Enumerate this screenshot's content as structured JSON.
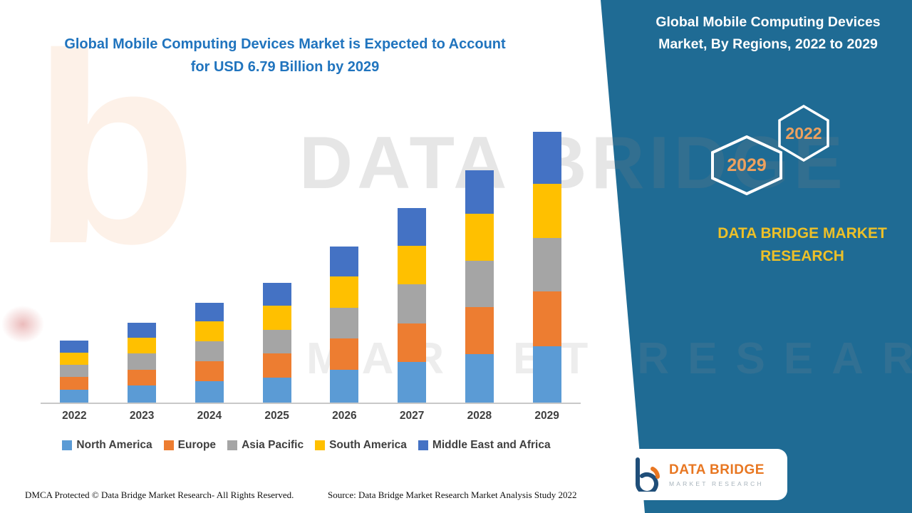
{
  "left": {
    "title_line1": "Global Mobile Computing Devices Market is Expected to Account",
    "title_line2": "for USD 6.79 Billion by 2029",
    "footer_dmca": "DMCA Protected © Data Bridge Market Research- All Rights Reserved.",
    "footer_source": "Source: Data Bridge Market Research Market Analysis Study 2022"
  },
  "right_panel": {
    "title_line1": "Global Mobile Computing Devices",
    "title_line2": "Market, By Regions, 2022 to 2029",
    "hexagon_left": "2029",
    "hexagon_right": "2022",
    "brand_line1": "DATA BRIDGE MARKET",
    "brand_line2": "RESEARCH",
    "panel_color": "#1F6B94",
    "hexagon_number_color": "#EDA15F",
    "brand_text_color": "#EDC028"
  },
  "logo": {
    "name": "DATA BRIDGE",
    "tagline": "MARKET RESEARCH"
  },
  "watermark": {
    "letter": "b",
    "line1": "DATA BRIDGE",
    "line2": "MARKET RESEARCH"
  },
  "chart_data": {
    "type": "bar",
    "stacked": true,
    "title": "Global Mobile Computing Devices Market, By Regions, 2022 to 2029",
    "unit": "USD Billion",
    "categories": [
      "2022",
      "2023",
      "2024",
      "2025",
      "2026",
      "2027",
      "2028",
      "2029"
    ],
    "series": [
      {
        "name": "North America",
        "color": "#5B9BD5",
        "values": [
          0.33,
          0.43,
          0.53,
          0.63,
          0.82,
          1.02,
          1.22,
          1.42
        ]
      },
      {
        "name": "Europe",
        "color": "#ED7D31",
        "values": [
          0.31,
          0.4,
          0.5,
          0.6,
          0.78,
          0.97,
          1.17,
          1.36
        ]
      },
      {
        "name": "Asia Pacific",
        "color": "#A5A5A5",
        "values": [
          0.31,
          0.4,
          0.5,
          0.6,
          0.78,
          0.97,
          1.17,
          1.35
        ]
      },
      {
        "name": "South America",
        "color": "#FFC000",
        "values": [
          0.31,
          0.4,
          0.5,
          0.6,
          0.78,
          0.97,
          1.17,
          1.36
        ]
      },
      {
        "name": "Middle East and Africa",
        "color": "#4472C4",
        "values": [
          0.29,
          0.38,
          0.48,
          0.57,
          0.75,
          0.94,
          1.1,
          1.3
        ]
      }
    ],
    "totals": [
      1.55,
      2.01,
      2.51,
      3.0,
      3.91,
      4.87,
      5.83,
      6.79
    ],
    "stated_value_2029": "USD 6.79 Billion",
    "xlabel": "",
    "ylabel": "USD Billion",
    "grid": false,
    "legend_position": "bottom"
  }
}
